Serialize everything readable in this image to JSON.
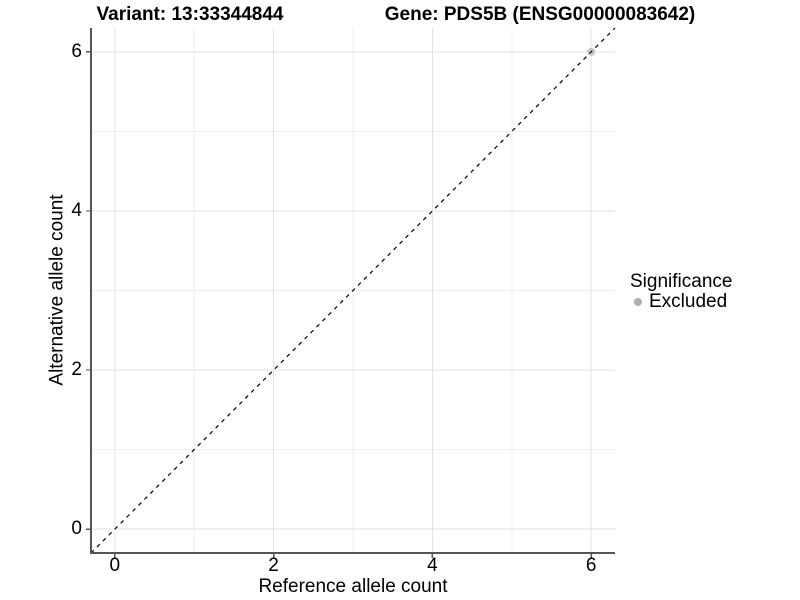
{
  "titles": {
    "left": "Variant: 13:33344844",
    "right": "Gene: PDS5B (ENSG00000083642)"
  },
  "chart_data": {
    "type": "scatter",
    "xlabel": "Reference allele count",
    "ylabel": "Alternative allele count",
    "xlim": [
      -0.3,
      6.3
    ],
    "ylim": [
      -0.3,
      6.3
    ],
    "xticks": [
      0,
      2,
      4,
      6
    ],
    "yticks": [
      0,
      2,
      4,
      6
    ],
    "xminor": [
      1,
      3,
      5
    ],
    "yminor": [
      1,
      3,
      5
    ],
    "grid": true,
    "identity_line": {
      "style": "dashed",
      "from": [
        -0.3,
        -0.3
      ],
      "to": [
        6.3,
        6.3
      ]
    },
    "points": [
      {
        "x": 6,
        "y": 6,
        "significance": "Excluded"
      }
    ],
    "legend": {
      "position": "right",
      "title": "Significance",
      "items": [
        {
          "label": "Excluded",
          "color": "#b0b0b0"
        }
      ]
    }
  },
  "colors": {
    "background": "#ffffff",
    "grid_major": "#e2e2e2",
    "grid_minor": "#efefef",
    "axis_line": "#555555",
    "tick_mark": "#555555",
    "identity_line": "#000000",
    "point_fill": "#c2c2c2",
    "legend_dot": "#b0b0b0",
    "text": "#000000"
  }
}
